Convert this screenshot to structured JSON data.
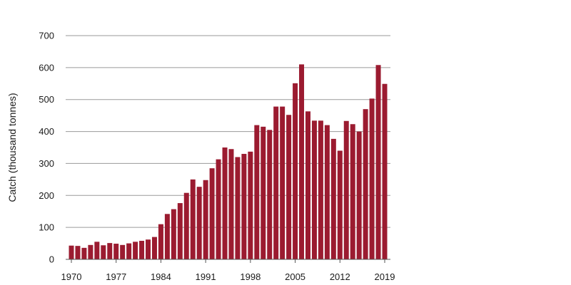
{
  "chart_data": {
    "type": "bar",
    "title": "",
    "xlabel": "",
    "ylabel": "Catch (thousand tonnes)",
    "ylim": [
      0,
      700
    ],
    "y_ticks": [
      "0",
      "100",
      "200",
      "300",
      "400",
      "500",
      "600",
      "700"
    ],
    "x_tick_labels": [
      "1970",
      "1977",
      "1984",
      "1991",
      "1998",
      "2005",
      "2012",
      "2019"
    ],
    "grid": "horizontal",
    "bar_color": "#9b1b30",
    "categories": [
      "1970",
      "1971",
      "1972",
      "1973",
      "1974",
      "1975",
      "1976",
      "1977",
      "1978",
      "1979",
      "1980",
      "1981",
      "1982",
      "1983",
      "1984",
      "1985",
      "1986",
      "1987",
      "1988",
      "1989",
      "1990",
      "1991",
      "1992",
      "1993",
      "1994",
      "1995",
      "1996",
      "1997",
      "1998",
      "1999",
      "2000",
      "2001",
      "2002",
      "2003",
      "2004",
      "2005",
      "2006",
      "2007",
      "2008",
      "2009",
      "2010",
      "2011",
      "2012",
      "2013",
      "2014",
      "2015",
      "2016",
      "2017",
      "2018",
      "2019"
    ],
    "values": [
      43,
      42,
      36,
      45,
      55,
      44,
      51,
      49,
      45,
      50,
      55,
      58,
      62,
      70,
      110,
      142,
      157,
      176,
      208,
      250,
      227,
      248,
      285,
      313,
      350,
      345,
      320,
      330,
      337,
      420,
      415,
      405,
      478,
      478,
      452,
      551,
      610,
      463,
      434,
      434,
      420,
      377,
      340,
      433,
      423,
      400,
      470,
      503,
      608,
      549
    ]
  }
}
